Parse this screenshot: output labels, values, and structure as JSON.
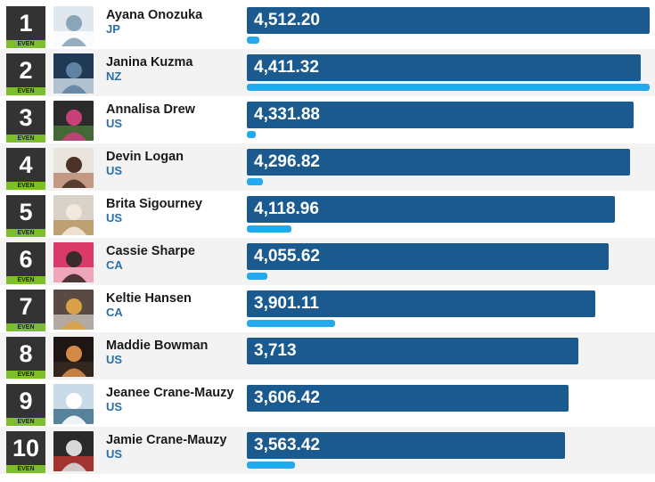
{
  "leaderboard": {
    "badge_label": "EVEN",
    "max_score": 4512.2,
    "entries": [
      {
        "rank": "1",
        "name": "Ayana Onozuka",
        "country": "JP",
        "score": "4,512.20",
        "value": 4512.2,
        "sub": 0.03,
        "photo": "athlete-aerial-photo"
      },
      {
        "rank": "2",
        "name": "Janina Kuzma",
        "country": "NZ",
        "score": "4,411.32",
        "value": 4411.32,
        "sub": 1.0,
        "photo": "halfpipe-scene-photo"
      },
      {
        "rank": "3",
        "name": "Annalisa Drew",
        "country": "US",
        "score": "4,331.88",
        "value": 4331.88,
        "sub": 0.02,
        "photo": "athlete-portrait-photo"
      },
      {
        "rank": "4",
        "name": "Devin Logan",
        "country": "US",
        "score": "4,296.82",
        "value": 4296.82,
        "sub": 0.04,
        "photo": "athlete-portrait-photo"
      },
      {
        "rank": "5",
        "name": "Brita Sigourney",
        "country": "US",
        "score": "4,118.96",
        "value": 4118.96,
        "sub": 0.11,
        "photo": "athlete-portrait-photo"
      },
      {
        "rank": "6",
        "name": "Cassie Sharpe",
        "country": "CA",
        "score": "4,055.62",
        "value": 4055.62,
        "sub": 0.05,
        "photo": "athlete-portrait-photo"
      },
      {
        "rank": "7",
        "name": "Keltie Hansen",
        "country": "CA",
        "score": "3,901.11",
        "value": 3901.11,
        "sub": 0.22,
        "photo": "athlete-portrait-photo"
      },
      {
        "rank": "8",
        "name": "Maddie Bowman",
        "country": "US",
        "score": "3,713",
        "value": 3713.0,
        "sub": 0.0,
        "photo": "athlete-portrait-photo"
      },
      {
        "rank": "9",
        "name": "Jeanee Crane-Mauzy",
        "country": "US",
        "score": "3,606.42",
        "value": 3606.42,
        "sub": 0.0,
        "photo": "slope-scene-photo"
      },
      {
        "rank": "10",
        "name": "Jamie Crane-Mauzy",
        "country": "US",
        "score": "3,563.42",
        "value": 3563.42,
        "sub": 0.12,
        "photo": "athlete-portrait-photo"
      }
    ]
  },
  "colors": {
    "bar": "#1a5a8f",
    "sub_bar": "#24a8ee",
    "rank_bg": "#333333",
    "badge_bg": "#7dbf2b",
    "country": "#2a6fab"
  }
}
